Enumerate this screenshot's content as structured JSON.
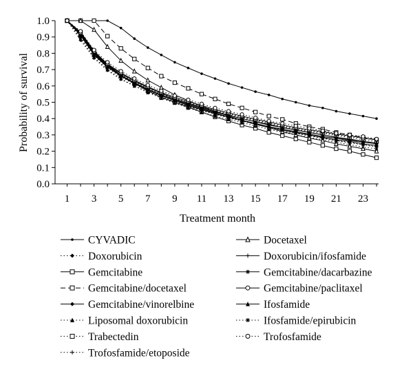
{
  "chart_data": {
    "type": "line",
    "title": "",
    "xlabel": "Treatment month",
    "ylabel": "Probability of survival",
    "xlim": [
      1,
      24
    ],
    "ylim": [
      0,
      1
    ],
    "x_ticks": [
      1,
      3,
      5,
      7,
      9,
      11,
      13,
      15,
      17,
      19,
      21,
      23
    ],
    "y_ticks": [
      "0.0",
      "0.1",
      "0.2",
      "0.3",
      "0.4",
      "0.5",
      "0.6",
      "0.7",
      "0.8",
      "0.9",
      "1.0"
    ],
    "grid": false,
    "legend_position": "bottom",
    "x": [
      1,
      2,
      3,
      4,
      5,
      6,
      7,
      8,
      9,
      10,
      11,
      12,
      13,
      14,
      15,
      16,
      17,
      18,
      19,
      20,
      21,
      22,
      23,
      24
    ],
    "series": [
      {
        "name": "CYVADIC",
        "line": "solid",
        "marker": "dot",
        "values": [
          1.0,
          1.0,
          1.0,
          1.0,
          0.955,
          0.89,
          0.835,
          0.79,
          0.745,
          0.71,
          0.675,
          0.645,
          0.615,
          0.59,
          0.565,
          0.545,
          0.52,
          0.5,
          0.48,
          0.465,
          0.445,
          0.43,
          0.415,
          0.4
        ]
      },
      {
        "name": "Doxorubicin",
        "line": "dotted",
        "marker": "diamond",
        "values": [
          1.0,
          0.88,
          0.77,
          0.695,
          0.64,
          0.6,
          0.565,
          0.53,
          0.5,
          0.475,
          0.45,
          0.43,
          0.405,
          0.385,
          0.365,
          0.345,
          0.325,
          0.31,
          0.295,
          0.28,
          0.265,
          0.255,
          0.24,
          0.23
        ]
      },
      {
        "name": "Gemcitabine",
        "line": "solid",
        "marker": "square",
        "values": [
          1.0,
          0.93,
          0.815,
          0.73,
          0.665,
          0.615,
          0.57,
          0.53,
          0.5,
          0.47,
          0.44,
          0.41,
          0.385,
          0.36,
          0.34,
          0.315,
          0.295,
          0.275,
          0.255,
          0.235,
          0.215,
          0.2,
          0.18,
          0.16
        ]
      },
      {
        "name": "Gemcitabine/docetaxel",
        "line": "dashed",
        "marker": "square",
        "values": [
          1.0,
          1.0,
          1.0,
          0.905,
          0.83,
          0.765,
          0.71,
          0.66,
          0.62,
          0.585,
          0.55,
          0.52,
          0.49,
          0.465,
          0.44,
          0.415,
          0.395,
          0.37,
          0.35,
          0.335,
          0.315,
          0.3,
          0.285,
          0.27
        ]
      },
      {
        "name": "Gemcitabine/vinorelbine",
        "line": "solid",
        "marker": "diamond",
        "values": [
          1.0,
          0.91,
          0.79,
          0.715,
          0.66,
          0.615,
          0.575,
          0.54,
          0.51,
          0.48,
          0.455,
          0.43,
          0.41,
          0.39,
          0.37,
          0.35,
          0.335,
          0.32,
          0.305,
          0.29,
          0.28,
          0.265,
          0.255,
          0.245
        ]
      },
      {
        "name": "Liposomal doxorubicin",
        "line": "dotted",
        "marker": "triangle",
        "values": [
          1.0,
          0.89,
          0.775,
          0.7,
          0.645,
          0.6,
          0.56,
          0.525,
          0.495,
          0.465,
          0.44,
          0.415,
          0.395,
          0.375,
          0.355,
          0.335,
          0.315,
          0.3,
          0.285,
          0.27,
          0.255,
          0.24,
          0.225,
          0.215
        ]
      },
      {
        "name": "Trabectedin",
        "line": "dotted",
        "marker": "square",
        "values": [
          1.0,
          0.905,
          0.79,
          0.72,
          0.665,
          0.62,
          0.585,
          0.55,
          0.52,
          0.495,
          0.47,
          0.445,
          0.425,
          0.405,
          0.385,
          0.37,
          0.35,
          0.335,
          0.32,
          0.31,
          0.295,
          0.285,
          0.27,
          0.26
        ]
      },
      {
        "name": "Trofosfamide/etoposide",
        "line": "dotted",
        "marker": "plus",
        "values": [
          1.0,
          0.915,
          0.8,
          0.725,
          0.67,
          0.625,
          0.59,
          0.555,
          0.525,
          0.5,
          0.475,
          0.45,
          0.43,
          0.41,
          0.39,
          0.375,
          0.355,
          0.34,
          0.325,
          0.315,
          0.3,
          0.29,
          0.28,
          0.27
        ]
      },
      {
        "name": "Docetaxel",
        "line": "solid",
        "marker": "triangle-open",
        "values": [
          1.0,
          1.0,
          0.945,
          0.84,
          0.755,
          0.69,
          0.635,
          0.59,
          0.545,
          0.51,
          0.475,
          0.445,
          0.415,
          0.39,
          0.365,
          0.345,
          0.32,
          0.3,
          0.28,
          0.265,
          0.245,
          0.23,
          0.215,
          0.2
        ]
      },
      {
        "name": "Doxorubicin/ifosfamide",
        "line": "solid",
        "marker": "plus",
        "values": [
          1.0,
          0.92,
          0.805,
          0.73,
          0.675,
          0.63,
          0.59,
          0.555,
          0.52,
          0.495,
          0.47,
          0.445,
          0.42,
          0.4,
          0.38,
          0.365,
          0.345,
          0.33,
          0.315,
          0.3,
          0.285,
          0.275,
          0.26,
          0.25
        ]
      },
      {
        "name": "Gemcitabine/dacarbazine",
        "line": "solid",
        "marker": "asterisk",
        "values": [
          1.0,
          0.915,
          0.8,
          0.725,
          0.665,
          0.62,
          0.58,
          0.545,
          0.515,
          0.485,
          0.46,
          0.435,
          0.41,
          0.39,
          0.37,
          0.35,
          0.33,
          0.315,
          0.3,
          0.285,
          0.27,
          0.26,
          0.245,
          0.235
        ]
      },
      {
        "name": "Gemcitabine/paclitaxel",
        "line": "solid",
        "marker": "circle",
        "values": [
          1.0,
          0.925,
          0.81,
          0.735,
          0.68,
          0.635,
          0.595,
          0.56,
          0.53,
          0.505,
          0.48,
          0.455,
          0.435,
          0.415,
          0.395,
          0.38,
          0.36,
          0.345,
          0.33,
          0.32,
          0.305,
          0.295,
          0.28,
          0.27
        ]
      },
      {
        "name": "Ifosfamide",
        "line": "solid",
        "marker": "triangle",
        "values": [
          1.0,
          0.91,
          0.795,
          0.72,
          0.665,
          0.62,
          0.58,
          0.545,
          0.515,
          0.49,
          0.465,
          0.44,
          0.42,
          0.4,
          0.38,
          0.36,
          0.345,
          0.33,
          0.315,
          0.3,
          0.285,
          0.27,
          0.26,
          0.25
        ]
      },
      {
        "name": "Ifosfamide/epirubicin",
        "line": "dotted",
        "marker": "asterisk",
        "values": [
          1.0,
          0.9,
          0.785,
          0.71,
          0.655,
          0.61,
          0.57,
          0.535,
          0.505,
          0.475,
          0.45,
          0.425,
          0.405,
          0.385,
          0.365,
          0.345,
          0.33,
          0.31,
          0.295,
          0.28,
          0.265,
          0.25,
          0.24,
          0.225
        ]
      },
      {
        "name": "Trofosfamide",
        "line": "dotted",
        "marker": "circle",
        "values": [
          1.0,
          0.935,
          0.82,
          0.745,
          0.69,
          0.645,
          0.605,
          0.57,
          0.54,
          0.515,
          0.49,
          0.465,
          0.445,
          0.425,
          0.405,
          0.385,
          0.37,
          0.355,
          0.34,
          0.325,
          0.31,
          0.3,
          0.29,
          0.275
        ]
      }
    ]
  }
}
